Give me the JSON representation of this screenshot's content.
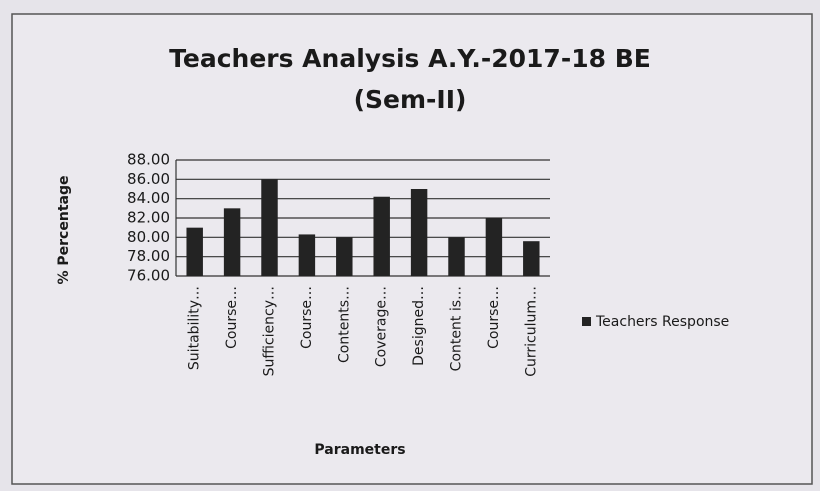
{
  "chart_data": {
    "type": "bar",
    "title": "Teachers Analysis A.Y.-2017-18 BE",
    "subtitle": "(Sem-II)",
    "x_label": "Parameters",
    "y_label": "% Percentage",
    "categories": [
      "Suitability…",
      "Course…",
      "Sufficiency…",
      "Course…",
      "Contents…",
      "Coverage…",
      "Designed…",
      "Content is…",
      "Course…",
      "Curriculum…"
    ],
    "series": [
      {
        "name": "Teachers Response",
        "color": "#232323",
        "values": [
          81.0,
          83.0,
          86.0,
          80.3,
          80.0,
          84.2,
          85.0,
          80.0,
          82.0,
          79.6
        ]
      }
    ],
    "ylim": [
      76,
      88
    ],
    "yticks": [
      {
        "value": 76,
        "label": "76.00"
      },
      {
        "value": 78,
        "label": "78.00"
      },
      {
        "value": 80,
        "label": "80.00"
      },
      {
        "value": 82,
        "label": "82.00"
      },
      {
        "value": 84,
        "label": "84.00"
      },
      {
        "value": 86,
        "label": "86.00"
      },
      {
        "value": 88,
        "label": "88.00"
      }
    ],
    "grid": true,
    "legend": "right"
  }
}
